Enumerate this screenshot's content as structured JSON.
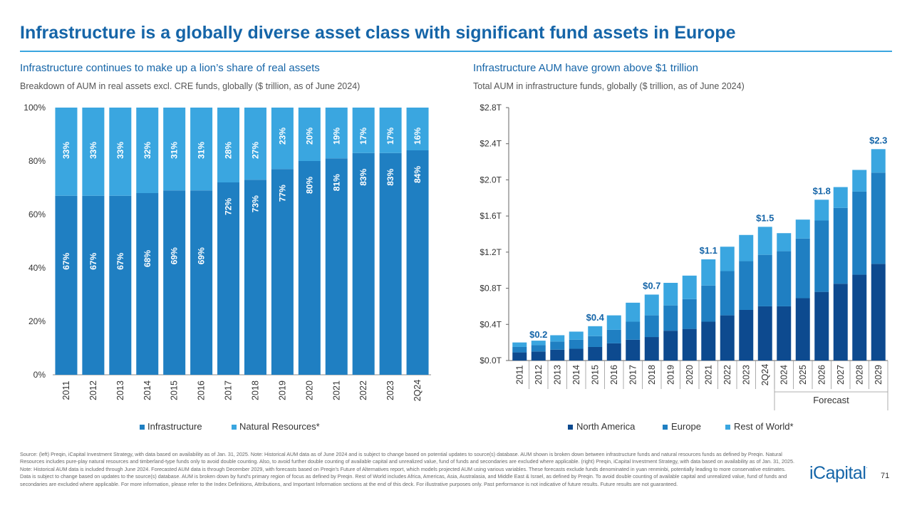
{
  "page": {
    "title": "Infrastructure is a globally diverse asset class with significant fund assets in Europe",
    "page_number": "71",
    "logo_text": "iCapital",
    "logo_mark": ".",
    "footnote": "Source: (left) Preqin, iCapital Investment Strategy, with data based on availability as of Jan. 31, 2025. Note: Historical AUM data as of June 2024 and is subject to change based on potential updates to source(s) database. AUM shown is broken down between infrastructure funds and natural resources funds as defined by Preqin. Natural Resources includes pure-play natural resources and timberland-type funds only to avoid double counting. Also, to avoid further double counting of available capital and unrealized value, fund of funds and secondaries are excluded where applicable. (right) Preqin, iCapital Investment Strategy, with data based on availability as of Jan. 31, 2025. Note: Historical AUM data is included through June 2024. Forecasted AUM data is through December 2029, with forecasts based on Preqin's Future of Alternatives report, which models projected AUM using various variables. These forecasts exclude funds denominated in yuan renminbi, potentially leading to more conservative estimates. Data is subject to change based on updates to the source(s) database. AUM is broken down by fund's primary region of focus as defined by Preqin. Rest of World includes Africa, Americas, Asia, Australasia, and Middle East & Israel, as defined by Preqin. To avoid double counting of available capital and unrealized value, fund of funds and secondaries are excluded where applicable. For more information, please refer to the Index Definitions, Attributions, and Important Information sections at the end of this deck. For illustrative purposes only. Past performance is not indicative of future results. Future results are not guaranteed."
  },
  "colors": {
    "dark_blue": "#0d4a8f",
    "mid_blue": "#1f7fc2",
    "light_blue": "#3aa6e0",
    "title_blue": "#1565a8",
    "infra_blue": "#1f7fc2"
  },
  "chart_data": [
    {
      "type": "bar",
      "stacked": "percent",
      "title": "Infrastructure continues to make up a lion’s share of real assets",
      "subtitle": "Breakdown of AUM in real assets excl. CRE funds, globally ($ trillion, as of June 2024)",
      "categories": [
        "2011",
        "2012",
        "2013",
        "2014",
        "2015",
        "2016",
        "2017",
        "2018",
        "2019",
        "2020",
        "2021",
        "2022",
        "2023",
        "2Q24"
      ],
      "series": [
        {
          "name": "Infrastructure",
          "values": [
            67,
            67,
            67,
            68,
            69,
            69,
            72,
            73,
            77,
            80,
            81,
            83,
            83,
            84
          ],
          "labels": [
            "67%",
            "67%",
            "67%",
            "68%",
            "69%",
            "69%",
            "72%",
            "73%",
            "77%",
            "80%",
            "81%",
            "83%",
            "83%",
            "84%"
          ]
        },
        {
          "name": "Natural Resources*",
          "values": [
            33,
            33,
            33,
            32,
            31,
            31,
            28,
            27,
            23,
            20,
            19,
            17,
            17,
            16
          ],
          "labels": [
            "33%",
            "33%",
            "33%",
            "32%",
            "31%",
            "31%",
            "28%",
            "27%",
            "23%",
            "20%",
            "19%",
            "17%",
            "17%",
            "16%"
          ]
        }
      ],
      "ylim": [
        0,
        100
      ],
      "yticks": [
        0,
        20,
        40,
        60,
        80,
        100
      ],
      "ytick_labels": [
        "0%",
        "20%",
        "40%",
        "60%",
        "80%",
        "100%"
      ],
      "legend": "bottom"
    },
    {
      "type": "bar",
      "stacked": true,
      "title": "Infrastructure AUM have grown above $1 trillion",
      "subtitle": "Total AUM in infrastructure funds, globally ($ trillion, as of June 2024)",
      "categories": [
        "2011",
        "2012",
        "2013",
        "2014",
        "2015",
        "2016",
        "2017",
        "2018",
        "2019",
        "2020",
        "2021",
        "2022",
        "2023",
        "2Q24",
        "2024",
        "2025",
        "2026",
        "2027",
        "2028",
        "2029"
      ],
      "series": [
        {
          "name": "North America",
          "values": [
            0.09,
            0.1,
            0.12,
            0.13,
            0.15,
            0.19,
            0.23,
            0.26,
            0.33,
            0.35,
            0.43,
            0.5,
            0.56,
            0.6,
            0.6,
            0.69,
            0.76,
            0.85,
            0.95,
            1.07
          ]
        },
        {
          "name": "Europe",
          "values": [
            0.06,
            0.07,
            0.09,
            0.1,
            0.12,
            0.15,
            0.2,
            0.24,
            0.28,
            0.33,
            0.4,
            0.49,
            0.54,
            0.57,
            0.61,
            0.66,
            0.79,
            0.84,
            0.92,
            1.01
          ]
        },
        {
          "name": "Rest of World*",
          "values": [
            0.05,
            0.05,
            0.07,
            0.09,
            0.11,
            0.16,
            0.21,
            0.23,
            0.25,
            0.26,
            0.29,
            0.27,
            0.29,
            0.31,
            0.2,
            0.21,
            0.23,
            0.23,
            0.24,
            0.26
          ]
        }
      ],
      "total_labels": [
        {
          "category": "2012",
          "text": "$0.2",
          "value": 0.19
        },
        {
          "category": "2015",
          "text": "$0.4",
          "value": 0.38
        },
        {
          "category": "2018",
          "text": "$0.7",
          "value": 0.73
        },
        {
          "category": "2021",
          "text": "$1.1",
          "value": 1.12
        },
        {
          "category": "2Q24",
          "text": "$1.5",
          "value": 1.48
        },
        {
          "category": "2026",
          "text": "$1.8",
          "value": 1.78
        },
        {
          "category": "2029",
          "text": "$2.3",
          "value": 2.34
        }
      ],
      "forecast_label": "Forecast",
      "forecast_start": "2024",
      "ylim": [
        0,
        2.8
      ],
      "yticks": [
        0,
        0.4,
        0.8,
        1.2,
        1.6,
        2.0,
        2.4,
        2.8
      ],
      "ytick_labels": [
        "$0.0T",
        "$0.4T",
        "$0.8T",
        "$1.2T",
        "$1.6T",
        "$2.0T",
        "$2.4T",
        "$2.8T"
      ],
      "legend": "bottom"
    }
  ]
}
